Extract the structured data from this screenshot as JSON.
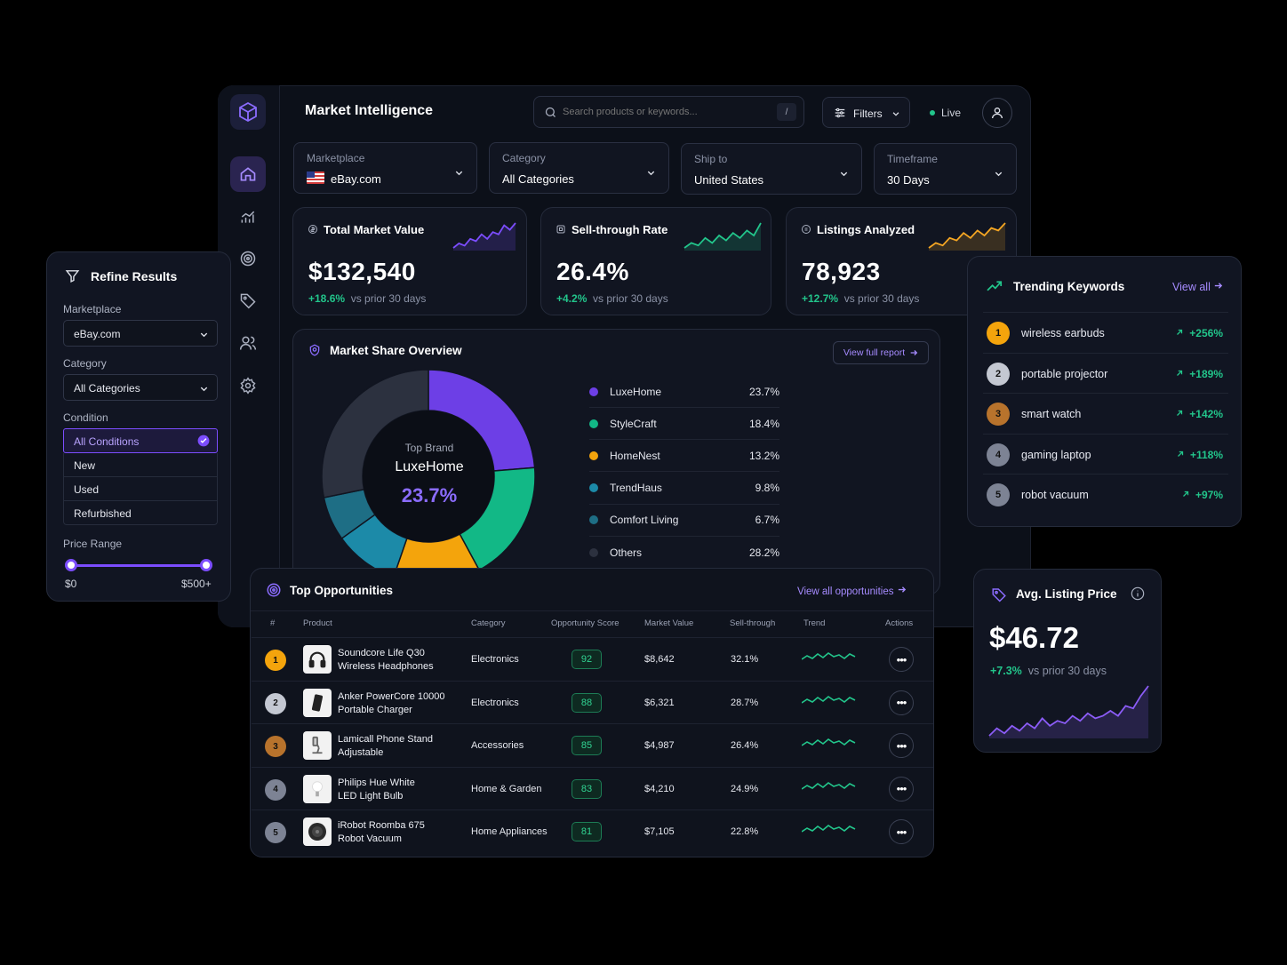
{
  "app": {
    "title": "Market Intelligence",
    "live_label": "Live",
    "filters_label": "Filters"
  },
  "search": {
    "placeholder": "Search products or keywords...",
    "shortcut": "/"
  },
  "selectors": [
    {
      "label": "Marketplace",
      "value": "eBay.com"
    },
    {
      "label": "Category",
      "value": "All Categories"
    },
    {
      "label": "Ship to",
      "value": "United States"
    },
    {
      "label": "Timeframe",
      "value": "30 Days"
    }
  ],
  "kpis": [
    {
      "title": "Total Market Value",
      "value": "$132,540",
      "change": "+18.6%",
      "compare": "vs prior 30 days",
      "color": "#7c4dff",
      "trend": [
        3,
        5,
        4,
        7,
        6,
        9,
        7,
        10,
        9,
        13,
        11,
        14
      ]
    },
    {
      "title": "Sell-through Rate",
      "value": "26.4%",
      "change": "+4.2%",
      "compare": "vs prior 30 days",
      "color": "#22c58b",
      "trend": [
        3,
        5,
        4,
        7,
        5,
        8,
        6,
        9,
        7,
        10,
        8,
        13
      ]
    },
    {
      "title": "Listings Analyzed",
      "value": "78,923",
      "change": "+12.7%",
      "compare": "vs prior 30 days",
      "color": "#f5a623",
      "trend": [
        2,
        4,
        3,
        6,
        5,
        8,
        6,
        9,
        7,
        10,
        9,
        12
      ]
    }
  ],
  "market_share": {
    "title": "Market Share Overview",
    "report_link": "View full report",
    "center_caption": "Top Brand",
    "center_brand": "LuxeHome",
    "center_value": "23.7%",
    "items": [
      {
        "name": "LuxeHome",
        "pct": "23.7%",
        "value": 23.7,
        "color": "#6d3fe6"
      },
      {
        "name": "StyleCraft",
        "pct": "18.4%",
        "value": 18.4,
        "color": "#12b886"
      },
      {
        "name": "HomeNest",
        "pct": "13.2%",
        "value": 13.2,
        "color": "#f4a40c"
      },
      {
        "name": "TrendHaus",
        "pct": "9.8%",
        "value": 9.8,
        "color": "#1c8aa8"
      },
      {
        "name": "Comfort Living",
        "pct": "6.7%",
        "value": 6.7,
        "color": "#1e6e85"
      },
      {
        "name": "Others",
        "pct": "28.2%",
        "value": 28.2,
        "color": "#2c313f"
      }
    ]
  },
  "refine": {
    "title": "Refine Results",
    "marketplace_label": "Marketplace",
    "marketplace_value": "eBay.com",
    "category_label": "Category",
    "category_value": "All Categories",
    "condition_label": "Condition",
    "conditions": [
      "All Conditions",
      "New",
      "Used",
      "Refurbished"
    ],
    "price_label": "Price Range",
    "price_min": "$0",
    "price_max": "$500+"
  },
  "keywords": {
    "title": "Trending Keywords",
    "view_all": "View all",
    "items": [
      {
        "rank": "1",
        "word": "wireless earbuds",
        "change": "+256%",
        "color": "#f4a40c"
      },
      {
        "rank": "2",
        "word": "portable projector",
        "change": "+189%",
        "color": "#c4c8d2"
      },
      {
        "rank": "3",
        "word": "smart watch",
        "change": "+142%",
        "color": "#b8732c"
      },
      {
        "rank": "4",
        "word": "gaming laptop",
        "change": "+118%",
        "color": "#7d8394"
      },
      {
        "rank": "5",
        "word": "robot vacuum",
        "change": "+97%",
        "color": "#7d8394"
      }
    ]
  },
  "avg_price": {
    "title": "Avg. Listing Price",
    "value": "$46.72",
    "change": "+7.3%",
    "compare": "vs prior 30 days",
    "trend": [
      2,
      5,
      3,
      6,
      4,
      7,
      5,
      9,
      6,
      8,
      7,
      10,
      8,
      11,
      9,
      10,
      12,
      10,
      14,
      13,
      18,
      22
    ]
  },
  "opportunities": {
    "title": "Top Opportunities",
    "view_all": "View all opportunities",
    "columns": [
      "#",
      "Product",
      "Category",
      "Opportunity Score",
      "Market Value",
      "Sell-through",
      "Trend",
      "Actions"
    ],
    "rows": [
      {
        "rank": "1",
        "name1": "Soundcore Life Q30",
        "name2": "Wireless Headphones",
        "category": "Electronics",
        "score": "92",
        "value": "$8,642",
        "sell": "32.1%",
        "color": "#f4a40c",
        "thumb": "headphones-icon"
      },
      {
        "rank": "2",
        "name1": "Anker PowerCore 10000",
        "name2": "Portable Charger",
        "category": "Electronics",
        "score": "88",
        "value": "$6,321",
        "sell": "28.7%",
        "color": "#c4c8d2",
        "thumb": "charger-icon"
      },
      {
        "rank": "3",
        "name1": "Lamicall Phone Stand",
        "name2": "Adjustable",
        "category": "Accessories",
        "score": "85",
        "value": "$4,987",
        "sell": "26.4%",
        "color": "#b8732c",
        "thumb": "phone-stand-icon"
      },
      {
        "rank": "4",
        "name1": "Philips Hue White",
        "name2": "LED Light Bulb",
        "category": "Home & Garden",
        "score": "83",
        "value": "$4,210",
        "sell": "24.9%",
        "color": "#7d8394",
        "thumb": "bulb-icon"
      },
      {
        "rank": "5",
        "name1": "iRobot Roomba 675",
        "name2": "Robot Vacuum",
        "category": "Home Appliances",
        "score": "81",
        "value": "$7,105",
        "sell": "22.8%",
        "color": "#7d8394",
        "thumb": "vacuum-icon"
      }
    ]
  },
  "colors": {
    "accent": "#7c4dff",
    "positive": "#22c58b",
    "background": "#0c1019"
  }
}
